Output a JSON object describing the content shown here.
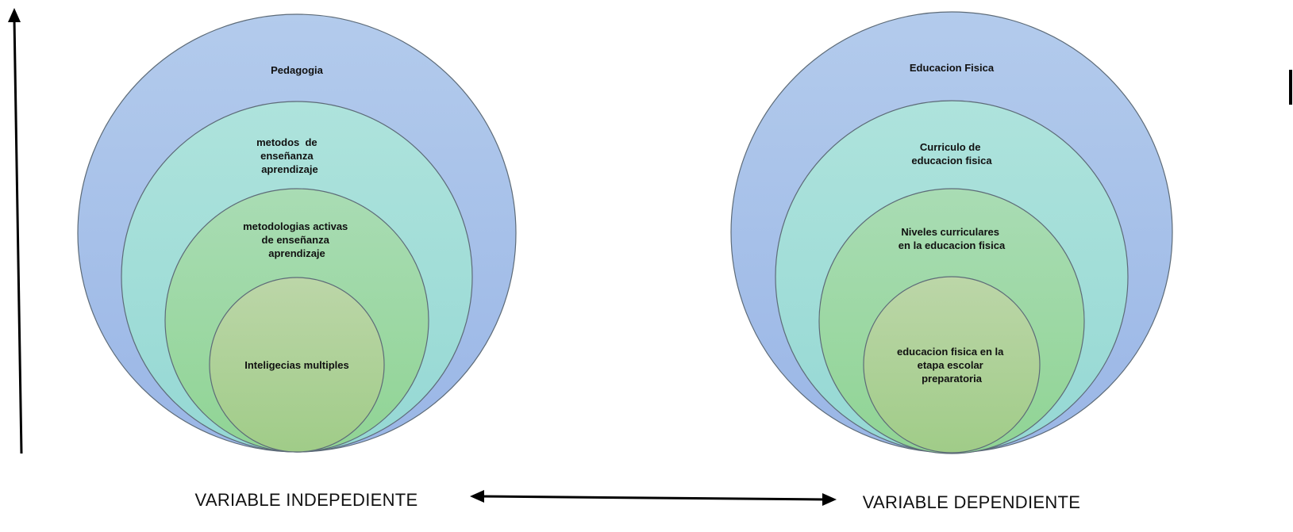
{
  "colors": {
    "ring1_top": "#b3cbec",
    "ring1_bottom": "#9ab6e6",
    "ring2_top": "#aee3dc",
    "ring2_bottom": "#95d8d4",
    "ring3_top": "#a9dcb4",
    "ring3_bottom": "#90d494",
    "ring4_top": "#bcd6a8",
    "ring4_bottom": "#a0cc88",
    "stroke": "#5d6b78",
    "arrow": "#000000"
  },
  "left_group": {
    "rings": [
      {
        "label_lines": [
          "Pedagogia"
        ]
      },
      {
        "label_lines": [
          "metodos  de",
          "enseñanza",
          "aprendizaje"
        ]
      },
      {
        "label_lines": [
          "metodologias activas",
          "de enseñanza",
          "aprendizaje"
        ]
      },
      {
        "label_lines": [
          "Inteligecias multiples"
        ]
      }
    ],
    "variable_label": "VARIABLE INDEPEDIENTE"
  },
  "right_group": {
    "rings": [
      {
        "label_lines": [
          "Educacion Fisica"
        ]
      },
      {
        "label_lines": [
          "Curriculo de",
          "educacion fisica"
        ]
      },
      {
        "label_lines": [
          "Niveles curriculares",
          "en la educacion fisica"
        ]
      },
      {
        "label_lines": [
          "educacion fisica en la",
          "etapa escolar",
          "preparatoria"
        ]
      }
    ],
    "variable_label": "VARIABLE DEPENDIENTE"
  }
}
